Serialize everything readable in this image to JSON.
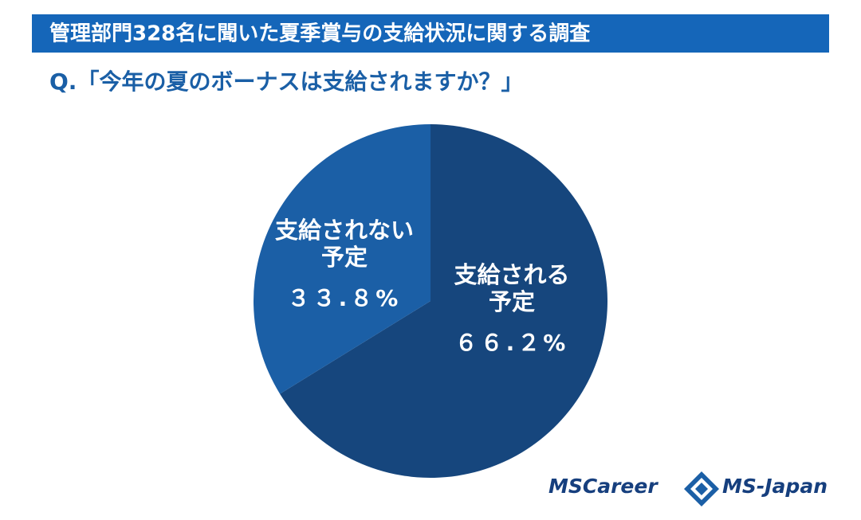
{
  "chart_data": {
    "type": "pie",
    "title": "管理部門328名に聞いた夏季賞与の支給状況に関する調査",
    "subtitle": "Q.「今年の夏のボーナスは支給されますか？」",
    "categories": [
      "支給される予定",
      "支給されない予定"
    ],
    "values": [
      66.2,
      33.8
    ],
    "value_labels": [
      "６６.２%",
      "３３.８%"
    ],
    "colors": [
      "#16467d",
      "#1b5fa6"
    ]
  },
  "logos": [
    "MSCareer",
    "MS-Japan"
  ]
}
